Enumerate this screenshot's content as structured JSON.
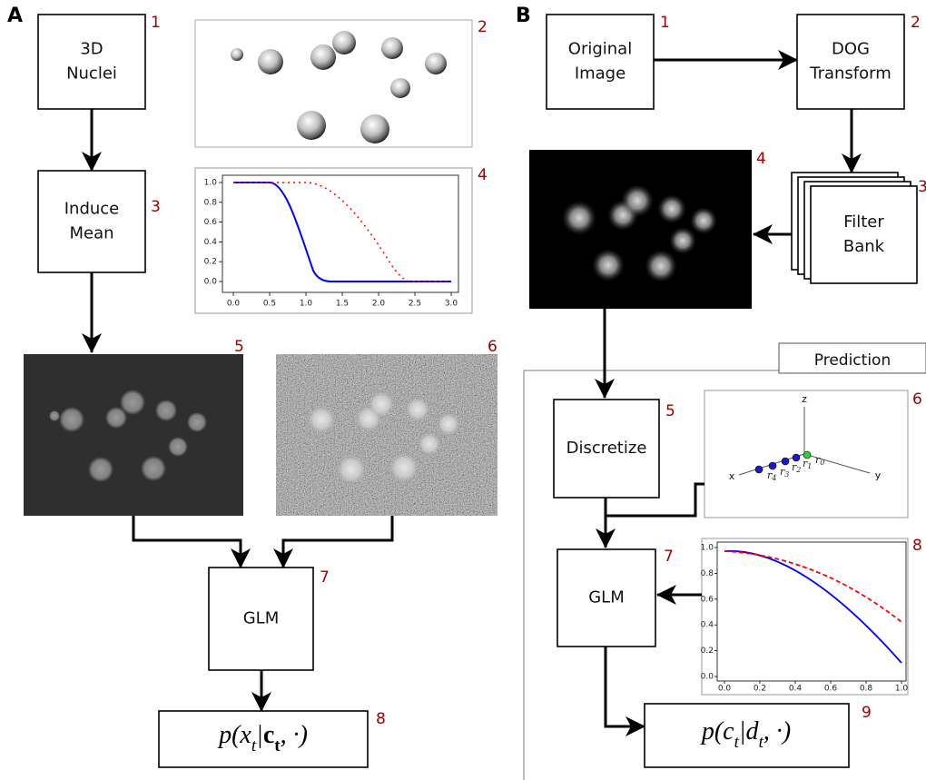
{
  "panel_a": {
    "letter": "A",
    "nuclei": {
      "lines": [
        "3D",
        "Nuclei"
      ],
      "number": "1"
    },
    "render": {
      "number": "2"
    },
    "induce_mean": {
      "lines": [
        "Induce",
        "Mean"
      ],
      "number": "3"
    },
    "profile_plot": {
      "number": "4",
      "yticks": [
        "1.0",
        "0.8",
        "0.6",
        "0.4",
        "0.2",
        "0.0"
      ],
      "xticks": [
        "0.0",
        "0.5",
        "1.0",
        "1.5",
        "2.0",
        "2.5",
        "3.0"
      ]
    },
    "mean_image": {
      "number": "5"
    },
    "noisy_image": {
      "number": "6"
    },
    "glm": {
      "label": "GLM",
      "number": "7"
    },
    "likelihood": {
      "parts": [
        "p(x",
        "t",
        "|",
        "c",
        "t",
        ", ·)"
      ],
      "number": "8"
    }
  },
  "panel_b": {
    "letter": "B",
    "original": {
      "lines": [
        "Original",
        "Image"
      ],
      "number": "1"
    },
    "dog": {
      "lines": [
        "DOG",
        "Transform"
      ],
      "number": "2"
    },
    "filter_bank": {
      "lines": [
        "Filter",
        "Bank"
      ],
      "number": "3"
    },
    "filtered_image": {
      "number": "4"
    },
    "prediction": {
      "label": "Prediction"
    },
    "discretize": {
      "lines": [
        "Discretize"
      ],
      "number": "5"
    },
    "axes_3d": {
      "number": "6",
      "axis_labels": [
        "z",
        "x",
        "y"
      ],
      "radii": [
        [
          "r",
          "4"
        ],
        [
          "r",
          "3"
        ],
        [
          "r",
          "2"
        ],
        [
          "r",
          "1"
        ],
        [
          "r",
          "0"
        ]
      ]
    },
    "glm": {
      "label": "GLM",
      "number": "7"
    },
    "decay_plot": {
      "number": "8",
      "yticks": [
        "1.0",
        "0.8",
        "0.6",
        "0.4",
        "0.2",
        "0.0"
      ],
      "xticks": [
        "0.0",
        "0.2",
        "0.4",
        "0.6",
        "0.8",
        "1.0"
      ]
    },
    "posterior": {
      "parts": [
        "p(c",
        "t",
        "|d",
        "t",
        ", ·)"
      ],
      "number": "9"
    }
  }
}
